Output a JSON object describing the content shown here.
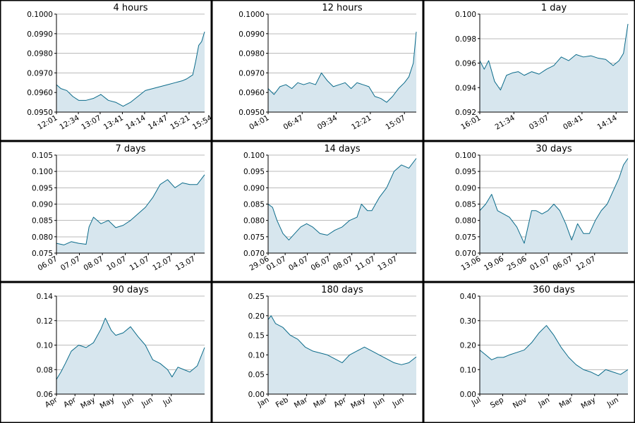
{
  "colors": {
    "line": "#0b6b8a",
    "fill": "#d7e6ee",
    "grid": "#bbbbbb",
    "border": "#000000",
    "background": "#ffffff"
  },
  "chart_data": [
    {
      "type": "area",
      "title": "4 hours",
      "grid": true,
      "x": [
        0,
        0.03,
        0.07,
        0.11,
        0.15,
        0.2,
        0.25,
        0.3,
        0.35,
        0.4,
        0.45,
        0.5,
        0.55,
        0.6,
        0.65,
        0.7,
        0.75,
        0.8,
        0.85,
        0.88,
        0.9,
        0.92,
        0.94,
        0.96,
        0.98,
        1.0
      ],
      "values": [
        0.0964,
        0.0962,
        0.0961,
        0.0958,
        0.0956,
        0.0956,
        0.0957,
        0.0959,
        0.0956,
        0.0955,
        0.0953,
        0.0955,
        0.0958,
        0.0961,
        0.0962,
        0.0963,
        0.0964,
        0.0965,
        0.0966,
        0.0967,
        0.0968,
        0.0969,
        0.0976,
        0.0984,
        0.0986,
        0.0991
      ],
      "ylim": [
        0.095,
        0.1
      ],
      "yticks": [
        {
          "v": 0.095,
          "label": "0.0950"
        },
        {
          "v": 0.096,
          "label": "0.0960"
        },
        {
          "v": 0.097,
          "label": "0.0970"
        },
        {
          "v": 0.098,
          "label": "0.0980"
        },
        {
          "v": 0.099,
          "label": "0.0990"
        },
        {
          "v": 0.1,
          "label": "0.1000"
        }
      ],
      "xticks": [
        {
          "v": 0.0,
          "label": "12:01"
        },
        {
          "v": 0.148,
          "label": "12:34"
        },
        {
          "v": 0.295,
          "label": "13:07"
        },
        {
          "v": 0.445,
          "label": "13:41"
        },
        {
          "v": 0.595,
          "label": "14:14"
        },
        {
          "v": 0.745,
          "label": "14:47"
        },
        {
          "v": 0.895,
          "label": "15:21"
        },
        {
          "v": 1.045,
          "label": "15:54"
        }
      ]
    },
    {
      "type": "area",
      "title": "12 hours",
      "grid": true,
      "x": [
        0,
        0.04,
        0.08,
        0.12,
        0.16,
        0.2,
        0.24,
        0.28,
        0.32,
        0.36,
        0.4,
        0.44,
        0.48,
        0.52,
        0.56,
        0.6,
        0.64,
        0.68,
        0.72,
        0.76,
        0.8,
        0.84,
        0.88,
        0.92,
        0.95,
        0.98,
        1.0
      ],
      "values": [
        0.0962,
        0.0959,
        0.0963,
        0.0964,
        0.0962,
        0.0965,
        0.0964,
        0.0965,
        0.0964,
        0.097,
        0.0966,
        0.0963,
        0.0964,
        0.0965,
        0.0962,
        0.0965,
        0.0964,
        0.0963,
        0.0958,
        0.0957,
        0.0955,
        0.0958,
        0.0962,
        0.0965,
        0.0968,
        0.0975,
        0.0991
      ],
      "ylim": [
        0.095,
        0.1
      ],
      "yticks": [
        {
          "v": 0.095,
          "label": "0.0950"
        },
        {
          "v": 0.096,
          "label": "0.0960"
        },
        {
          "v": 0.097,
          "label": "0.0970"
        },
        {
          "v": 0.098,
          "label": "0.0980"
        },
        {
          "v": 0.099,
          "label": "0.0990"
        },
        {
          "v": 0.1,
          "label": "0.1000"
        }
      ],
      "xticks": [
        {
          "v": 0.0,
          "label": "04:01"
        },
        {
          "v": 0.23,
          "label": "06:47"
        },
        {
          "v": 0.46,
          "label": "09:34"
        },
        {
          "v": 0.69,
          "label": "12:21"
        },
        {
          "v": 0.92,
          "label": "15:07"
        }
      ]
    },
    {
      "type": "area",
      "title": "1 day",
      "grid": true,
      "x": [
        0,
        0.03,
        0.06,
        0.1,
        0.14,
        0.18,
        0.22,
        0.26,
        0.3,
        0.35,
        0.4,
        0.45,
        0.5,
        0.55,
        0.6,
        0.65,
        0.7,
        0.75,
        0.8,
        0.85,
        0.9,
        0.94,
        0.97,
        1.0
      ],
      "values": [
        0.0962,
        0.0955,
        0.0962,
        0.0945,
        0.0938,
        0.095,
        0.0952,
        0.0953,
        0.095,
        0.0953,
        0.0951,
        0.0955,
        0.0958,
        0.0965,
        0.0962,
        0.0967,
        0.0965,
        0.0966,
        0.0964,
        0.0963,
        0.0958,
        0.0962,
        0.0968,
        0.0992
      ],
      "ylim": [
        0.092,
        0.1
      ],
      "yticks": [
        {
          "v": 0.092,
          "label": "0.092"
        },
        {
          "v": 0.094,
          "label": "0.094"
        },
        {
          "v": 0.096,
          "label": "0.096"
        },
        {
          "v": 0.098,
          "label": "0.098"
        },
        {
          "v": 0.1,
          "label": "0.100"
        }
      ],
      "xticks": [
        {
          "v": 0.0,
          "label": "16:01"
        },
        {
          "v": 0.23,
          "label": "21:34"
        },
        {
          "v": 0.46,
          "label": "03:07"
        },
        {
          "v": 0.69,
          "label": "08:41"
        },
        {
          "v": 0.92,
          "label": "14:14"
        }
      ]
    },
    {
      "type": "area",
      "title": "7 days",
      "grid": true,
      "x": [
        0,
        0.05,
        0.1,
        0.15,
        0.2,
        0.22,
        0.25,
        0.3,
        0.35,
        0.4,
        0.45,
        0.5,
        0.55,
        0.6,
        0.65,
        0.7,
        0.75,
        0.8,
        0.85,
        0.9,
        0.95,
        1.0
      ],
      "values": [
        0.078,
        0.0775,
        0.0785,
        0.078,
        0.0777,
        0.083,
        0.086,
        0.084,
        0.085,
        0.0828,
        0.0835,
        0.085,
        0.087,
        0.089,
        0.092,
        0.096,
        0.0975,
        0.095,
        0.0965,
        0.096,
        0.096,
        0.099
      ],
      "ylim": [
        0.075,
        0.105
      ],
      "yticks": [
        {
          "v": 0.075,
          "label": "0.075"
        },
        {
          "v": 0.08,
          "label": "0.080"
        },
        {
          "v": 0.085,
          "label": "0.085"
        },
        {
          "v": 0.09,
          "label": "0.090"
        },
        {
          "v": 0.095,
          "label": "0.095"
        },
        {
          "v": 0.1,
          "label": "0.100"
        },
        {
          "v": 0.105,
          "label": "0.105"
        }
      ],
      "xticks": [
        {
          "v": 0.0,
          "label": "06.07"
        },
        {
          "v": 0.155,
          "label": "07.07"
        },
        {
          "v": 0.31,
          "label": "08.07"
        },
        {
          "v": 0.465,
          "label": "10.07"
        },
        {
          "v": 0.62,
          "label": "11.07"
        },
        {
          "v": 0.775,
          "label": "12.07"
        },
        {
          "v": 0.93,
          "label": "13.07"
        }
      ]
    },
    {
      "type": "area",
      "title": "14 days",
      "grid": true,
      "x": [
        0,
        0.03,
        0.06,
        0.1,
        0.14,
        0.18,
        0.22,
        0.26,
        0.3,
        0.35,
        0.4,
        0.45,
        0.5,
        0.55,
        0.6,
        0.63,
        0.67,
        0.7,
        0.75,
        0.8,
        0.85,
        0.9,
        0.95,
        1.0
      ],
      "values": [
        0.085,
        0.084,
        0.08,
        0.076,
        0.074,
        0.076,
        0.078,
        0.079,
        0.078,
        0.076,
        0.0755,
        0.077,
        0.078,
        0.08,
        0.081,
        0.085,
        0.083,
        0.083,
        0.087,
        0.09,
        0.095,
        0.097,
        0.096,
        0.099
      ],
      "ylim": [
        0.07,
        0.1
      ],
      "yticks": [
        {
          "v": 0.07,
          "label": "0.070"
        },
        {
          "v": 0.075,
          "label": "0.075"
        },
        {
          "v": 0.08,
          "label": "0.080"
        },
        {
          "v": 0.085,
          "label": "0.085"
        },
        {
          "v": 0.09,
          "label": "0.090"
        },
        {
          "v": 0.095,
          "label": "0.095"
        },
        {
          "v": 0.1,
          "label": "0.100"
        }
      ],
      "xticks": [
        {
          "v": 0.0,
          "label": "29.06"
        },
        {
          "v": 0.115,
          "label": "01.07"
        },
        {
          "v": 0.265,
          "label": "04.07"
        },
        {
          "v": 0.415,
          "label": "06.07"
        },
        {
          "v": 0.565,
          "label": "08.07"
        },
        {
          "v": 0.715,
          "label": "11.07"
        },
        {
          "v": 0.865,
          "label": "13.07"
        }
      ]
    },
    {
      "type": "area",
      "title": "30 days",
      "grid": true,
      "x": [
        0,
        0.04,
        0.08,
        0.12,
        0.16,
        0.2,
        0.25,
        0.3,
        0.35,
        0.38,
        0.42,
        0.46,
        0.5,
        0.54,
        0.58,
        0.62,
        0.66,
        0.7,
        0.74,
        0.78,
        0.82,
        0.86,
        0.9,
        0.94,
        0.97,
        1.0
      ],
      "values": [
        0.083,
        0.085,
        0.088,
        0.083,
        0.082,
        0.081,
        0.078,
        0.073,
        0.083,
        0.083,
        0.082,
        0.083,
        0.085,
        0.083,
        0.079,
        0.074,
        0.079,
        0.076,
        0.076,
        0.08,
        0.083,
        0.085,
        0.089,
        0.093,
        0.097,
        0.099
      ],
      "ylim": [
        0.07,
        0.1
      ],
      "yticks": [
        {
          "v": 0.07,
          "label": "0.070"
        },
        {
          "v": 0.075,
          "label": "0.075"
        },
        {
          "v": 0.08,
          "label": "0.080"
        },
        {
          "v": 0.085,
          "label": "0.085"
        },
        {
          "v": 0.09,
          "label": "0.090"
        },
        {
          "v": 0.095,
          "label": "0.095"
        },
        {
          "v": 0.1,
          "label": "0.100"
        }
      ],
      "xticks": [
        {
          "v": 0.0,
          "label": "13.06"
        },
        {
          "v": 0.155,
          "label": "19.06"
        },
        {
          "v": 0.31,
          "label": "25.06"
        },
        {
          "v": 0.465,
          "label": "01.07"
        },
        {
          "v": 0.62,
          "label": "06.07"
        },
        {
          "v": 0.775,
          "label": "12.07"
        }
      ]
    },
    {
      "type": "area",
      "title": "90 days",
      "grid": true,
      "x": [
        0,
        0.03,
        0.06,
        0.1,
        0.15,
        0.2,
        0.25,
        0.3,
        0.33,
        0.37,
        0.4,
        0.45,
        0.5,
        0.55,
        0.6,
        0.65,
        0.7,
        0.75,
        0.78,
        0.82,
        0.86,
        0.9,
        0.95,
        1.0
      ],
      "values": [
        0.072,
        0.078,
        0.085,
        0.095,
        0.1,
        0.098,
        0.102,
        0.113,
        0.122,
        0.112,
        0.108,
        0.11,
        0.115,
        0.107,
        0.1,
        0.088,
        0.085,
        0.08,
        0.074,
        0.082,
        0.08,
        0.078,
        0.083,
        0.098
      ],
      "ylim": [
        0.06,
        0.14
      ],
      "yticks": [
        {
          "v": 0.06,
          "label": "0.06"
        },
        {
          "v": 0.08,
          "label": "0.08"
        },
        {
          "v": 0.1,
          "label": "0.10"
        },
        {
          "v": 0.12,
          "label": "0.12"
        },
        {
          "v": 0.14,
          "label": "0.14"
        }
      ],
      "xticks": [
        {
          "v": 0.0,
          "label": "Apr"
        },
        {
          "v": 0.125,
          "label": "Apr"
        },
        {
          "v": 0.255,
          "label": "May"
        },
        {
          "v": 0.385,
          "label": "May"
        },
        {
          "v": 0.515,
          "label": "Jun"
        },
        {
          "v": 0.645,
          "label": "Jun"
        },
        {
          "v": 0.775,
          "label": "Jul"
        }
      ]
    },
    {
      "type": "area",
      "title": "180 days",
      "grid": true,
      "x": [
        0,
        0.02,
        0.05,
        0.1,
        0.15,
        0.2,
        0.25,
        0.3,
        0.35,
        0.4,
        0.45,
        0.5,
        0.55,
        0.6,
        0.65,
        0.7,
        0.75,
        0.8,
        0.85,
        0.9,
        0.95,
        1.0
      ],
      "values": [
        0.19,
        0.2,
        0.18,
        0.17,
        0.15,
        0.14,
        0.12,
        0.11,
        0.105,
        0.1,
        0.09,
        0.08,
        0.1,
        0.11,
        0.12,
        0.11,
        0.1,
        0.09,
        0.08,
        0.075,
        0.08,
        0.095
      ],
      "ylim": [
        0,
        0.25
      ],
      "yticks": [
        {
          "v": 0,
          "label": "0.00"
        },
        {
          "v": 0.05,
          "label": "0.05"
        },
        {
          "v": 0.1,
          "label": "0.10"
        },
        {
          "v": 0.15,
          "label": "0.15"
        },
        {
          "v": 0.2,
          "label": "0.20"
        },
        {
          "v": 0.25,
          "label": "0.25"
        }
      ],
      "xticks": [
        {
          "v": 0.0,
          "label": "Jan"
        },
        {
          "v": 0.13,
          "label": "Feb"
        },
        {
          "v": 0.26,
          "label": "Mar"
        },
        {
          "v": 0.39,
          "label": "Mar"
        },
        {
          "v": 0.52,
          "label": "Apr"
        },
        {
          "v": 0.65,
          "label": "May"
        },
        {
          "v": 0.78,
          "label": "Jun"
        },
        {
          "v": 0.91,
          "label": "Jun"
        }
      ]
    },
    {
      "type": "area",
      "title": "360 days",
      "grid": true,
      "x": [
        0,
        0.04,
        0.08,
        0.12,
        0.16,
        0.2,
        0.25,
        0.3,
        0.35,
        0.4,
        0.45,
        0.5,
        0.55,
        0.6,
        0.65,
        0.7,
        0.75,
        0.8,
        0.85,
        0.9,
        0.95,
        1.0
      ],
      "values": [
        0.18,
        0.16,
        0.14,
        0.15,
        0.15,
        0.16,
        0.17,
        0.18,
        0.21,
        0.25,
        0.28,
        0.24,
        0.19,
        0.15,
        0.12,
        0.1,
        0.09,
        0.075,
        0.1,
        0.09,
        0.08,
        0.1
      ],
      "ylim": [
        0,
        0.4
      ],
      "yticks": [
        {
          "v": 0,
          "label": "0.00"
        },
        {
          "v": 0.1,
          "label": "0.10"
        },
        {
          "v": 0.2,
          "label": "0.20"
        },
        {
          "v": 0.3,
          "label": "0.30"
        },
        {
          "v": 0.4,
          "label": "0.40"
        }
      ],
      "xticks": [
        {
          "v": 0.0,
          "label": "Jul"
        },
        {
          "v": 0.155,
          "label": "Sep"
        },
        {
          "v": 0.31,
          "label": "Nov"
        },
        {
          "v": 0.465,
          "label": "Jan"
        },
        {
          "v": 0.62,
          "label": "Mar"
        },
        {
          "v": 0.775,
          "label": "May"
        },
        {
          "v": 0.93,
          "label": "Jun"
        }
      ]
    }
  ]
}
